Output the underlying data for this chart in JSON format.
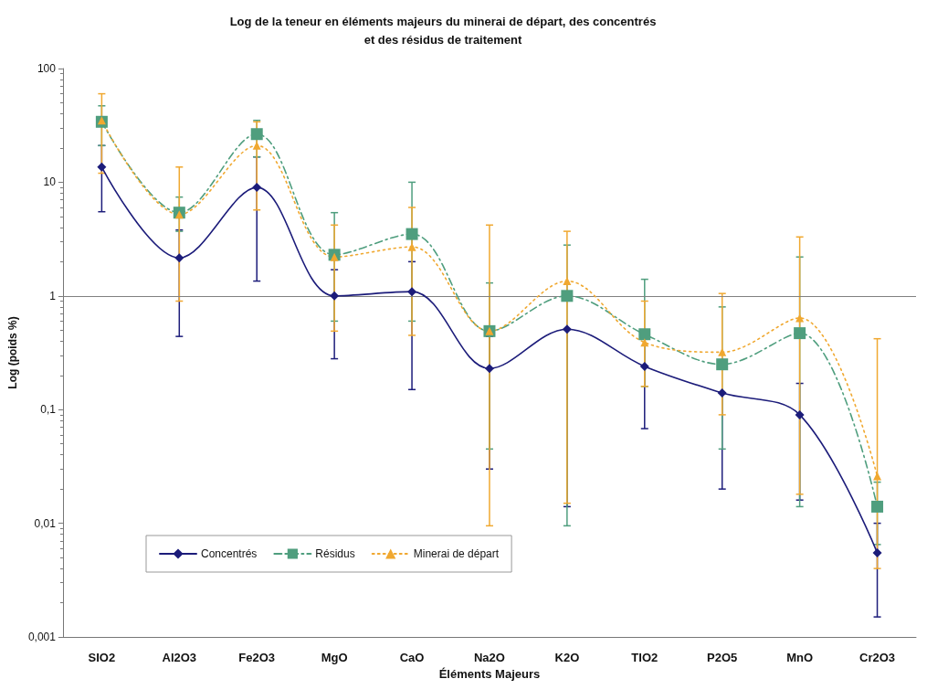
{
  "chart_data": {
    "type": "line",
    "title": "Log de la teneur en éléments majeurs du minerai de départ, des concentrés\net des résidus de traitement",
    "xlabel": "Éléments Majeurs",
    "ylabel": "Log (poids %)",
    "categories": [
      "SIO2",
      "Al2O3",
      "Fe2O3",
      "MgO",
      "CaO",
      "Na2O",
      "K2O",
      "TIO2",
      "P2O5",
      "MnO",
      "Cr2O3"
    ],
    "log": "y",
    "ylim": [
      0.001,
      100
    ],
    "yticks": [
      {
        "value": 0.001,
        "label": "0,001"
      },
      {
        "value": 0.01,
        "label": "0,01"
      },
      {
        "value": 0.1,
        "label": "0,1"
      },
      1,
      10,
      100
    ],
    "grid": false,
    "legend": "bottom left",
    "ref_lines": [
      {
        "axis": "y",
        "value": 1,
        "color": "#808080"
      }
    ],
    "series": [
      {
        "name": "Concentrés",
        "color": "#1c1c7a",
        "marker": "diamond",
        "line_style": "solid",
        "values": [
          13.6,
          2.16,
          9,
          1,
          1.09,
          0.23,
          0.51,
          0.24,
          0.14,
          0.09,
          0.0055
        ],
        "errors": [
          [
            5.5,
            21
          ],
          [
            0.44,
            3.8
          ],
          [
            1.35,
            16.7
          ],
          [
            0.28,
            1.7
          ],
          [
            0.15,
            2
          ],
          [
            0.03,
            0.44
          ],
          [
            0.014,
            0.51
          ],
          [
            0.068,
            0.42
          ],
          [
            0.02,
            0.14
          ],
          [
            0.016,
            0.17
          ],
          [
            0.0015,
            0.01
          ]
        ]
      },
      {
        "name": "Résidus",
        "color": "#4f9e7e",
        "marker": "square",
        "line_style": "dashed",
        "values": [
          34,
          5.4,
          26.5,
          2.3,
          3.5,
          0.49,
          1,
          0.46,
          0.25,
          0.47,
          0.014
        ],
        "errors": [
          [
            21,
            47
          ],
          [
            3.7,
            7.4
          ],
          [
            16.7,
            35
          ],
          [
            0.6,
            5.4
          ],
          [
            0.6,
            10
          ],
          [
            0.045,
            1.3
          ],
          [
            0.0095,
            2.8
          ],
          [
            0.16,
            1.4
          ],
          [
            0.045,
            0.8
          ],
          [
            0.014,
            2.2
          ],
          [
            0.0065,
            0.023
          ]
        ]
      },
      {
        "name": "Minerai de départ",
        "color": "#f0a830",
        "marker": "triangle",
        "line_style": "dotted",
        "values": [
          35,
          5.2,
          21,
          2.2,
          2.7,
          0.49,
          1.35,
          0.39,
          0.32,
          0.64,
          0.026
        ],
        "errors": [
          [
            12,
            60
          ],
          [
            0.9,
            13.6
          ],
          [
            5.7,
            34
          ],
          [
            0.49,
            4.2
          ],
          [
            0.45,
            6
          ],
          [
            0.0095,
            4.2
          ],
          [
            0.015,
            3.7
          ],
          [
            0.16,
            0.9
          ],
          [
            0.09,
            1.05
          ],
          [
            0.018,
            3.3
          ],
          [
            0.004,
            0.42
          ]
        ]
      }
    ]
  }
}
